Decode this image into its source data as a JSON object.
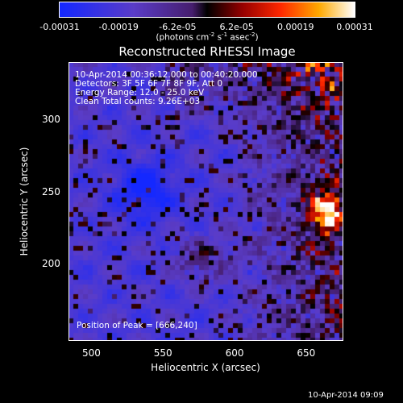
{
  "colorbar": {
    "ticks": [
      "-0.00031",
      "-0.00019",
      "-6.2e-05",
      "6.2e-05",
      "0.00019",
      "0.00031"
    ],
    "units_prefix": "(photons cm",
    "units_exp1": "-2",
    "units_mid1": " s",
    "units_exp2": "-1",
    "units_mid2": " asec",
    "units_exp3": "-2",
    "units_suffix": ")"
  },
  "plot": {
    "title": "Reconstructed RHESSI Image",
    "info_time": "10-Apr-2014 00:36:12.000 to 00:40:20.000",
    "info_detectors": "Detectors: 3F 5F 6F 7F 8F 9F, Att 0",
    "info_energy": "Energy Range: 12.0 - 25.0 keV",
    "info_clean": "Clean     Total counts: 9.26E+03",
    "peak_label": "Position of Peak = [666,240]",
    "x_ticks": [
      "500",
      "550",
      "600",
      "650"
    ],
    "y_ticks": [
      "300",
      "250",
      "200"
    ],
    "xlabel": "Heliocentric X (arcsec)",
    "ylabel": "Heliocentric Y (arcsec)",
    "xlim": [
      484,
      676
    ],
    "ylim": [
      146,
      340
    ]
  },
  "footer": {
    "timestamp": "10-Apr-2014 09:09"
  }
}
